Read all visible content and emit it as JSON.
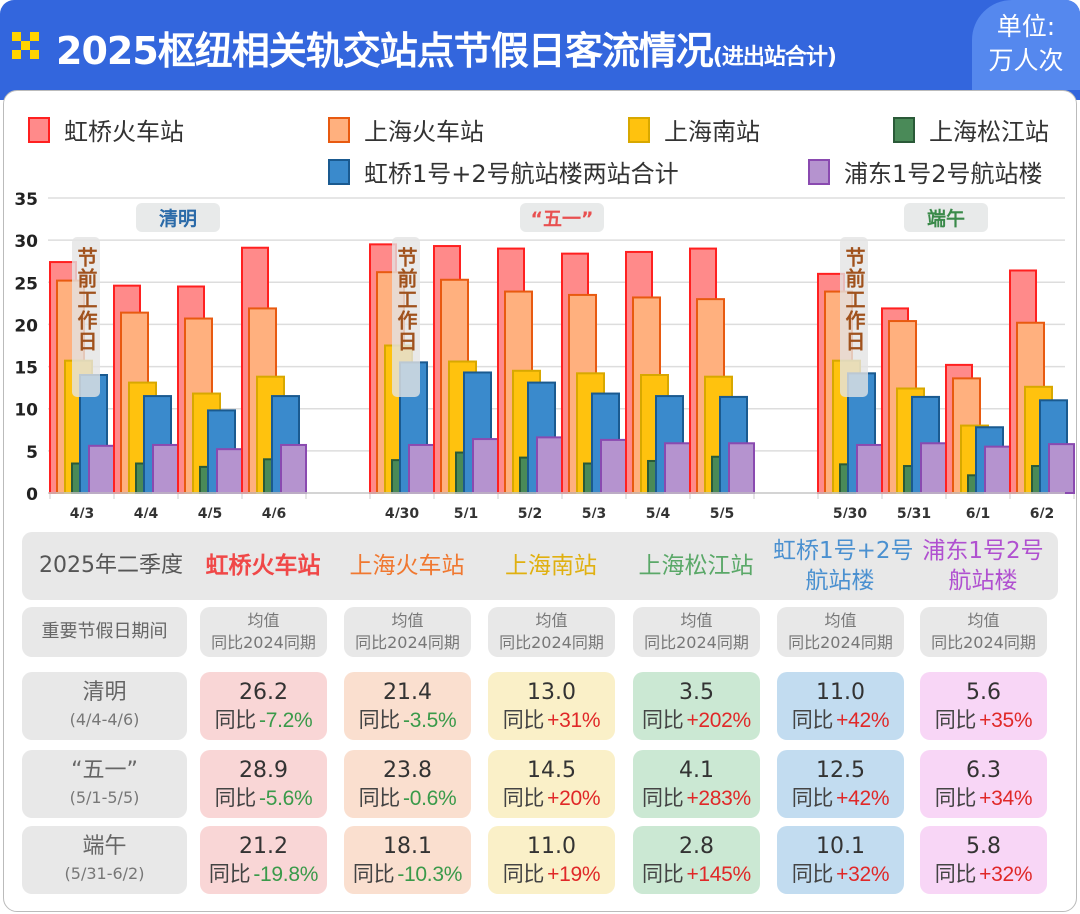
{
  "header": {
    "title": "2025枢纽相关轨交站点节假日客流情况",
    "title_note": "(进出站合计)",
    "unit_line1": "单位:",
    "unit_line2": "万人次"
  },
  "colors": {
    "header_bg": "#3366dd",
    "hongqiao_rail": "#ff8a8a",
    "shanghai_rail": "#ffb07e",
    "shanghai_south": "#ffc20e",
    "songjiang": "#4a8a58",
    "hongqiao_airport": "#3a8acc",
    "pudong_airport": "#b593cf"
  },
  "chart_data": {
    "type": "bar",
    "ylim": [
      0,
      35
    ],
    "yticks": [
      0,
      5,
      10,
      15,
      20,
      25,
      30,
      35
    ],
    "grid": true,
    "legend_position": "top",
    "annotation": "节前工作日",
    "annotation_categories": [
      "4/30",
      "5/30",
      "4/3"
    ],
    "groups": [
      {
        "label": "清明",
        "color": "#2a6aa8",
        "categories": [
          "4/3",
          "4/4",
          "4/5",
          "4/6"
        ]
      },
      {
        "label": "“五一”",
        "color": "#e85050",
        "categories": [
          "4/30",
          "5/1",
          "5/2",
          "5/3",
          "5/4",
          "5/5"
        ]
      },
      {
        "label": "端午",
        "color": "#3a8a4a",
        "categories": [
          "5/30",
          "5/31",
          "6/1",
          "6/2"
        ]
      }
    ],
    "categories": [
      "4/3",
      "4/4",
      "4/5",
      "4/6",
      "4/30",
      "5/1",
      "5/2",
      "5/3",
      "5/4",
      "5/5",
      "5/30",
      "5/31",
      "6/1",
      "6/2"
    ],
    "series": [
      {
        "name": "虹桥火车站",
        "fill": "#ff8a8a",
        "stroke": "#ff2020",
        "values": [
          27.4,
          24.6,
          24.5,
          29.1,
          29.5,
          29.3,
          29.0,
          28.4,
          28.6,
          29.0,
          26.0,
          21.9,
          15.2,
          26.4
        ]
      },
      {
        "name": "上海火车站",
        "fill": "#ffb07e",
        "stroke": "#e85a10",
        "values": [
          25.2,
          21.4,
          20.7,
          21.9,
          26.2,
          25.3,
          23.9,
          23.5,
          23.2,
          23.0,
          23.9,
          20.4,
          13.6,
          20.2
        ]
      },
      {
        "name": "上海南站",
        "fill": "#ffc20e",
        "stroke": "#d8a800",
        "values": [
          15.7,
          13.1,
          11.8,
          13.8,
          17.5,
          15.6,
          14.5,
          14.2,
          14.0,
          13.8,
          15.7,
          12.4,
          8.0,
          12.6
        ]
      },
      {
        "name": "上海松江站",
        "fill": "#4a8a58",
        "stroke": "#2a5a38",
        "values": [
          3.5,
          3.5,
          3.1,
          4.0,
          3.9,
          4.8,
          4.2,
          3.5,
          3.8,
          4.3,
          3.4,
          3.2,
          2.1,
          3.2
        ]
      },
      {
        "name": "虹桥1号+2号航站楼两站合计",
        "fill": "#3a8acc",
        "stroke": "#1a5a90",
        "values": [
          14.0,
          11.5,
          9.8,
          11.5,
          15.5,
          14.3,
          13.1,
          11.8,
          11.5,
          11.4,
          14.2,
          11.4,
          7.8,
          11.0
        ]
      },
      {
        "name": "浦东1号2号航站楼",
        "fill": "#b593cf",
        "stroke": "#8a4ab0",
        "values": [
          5.6,
          5.7,
          5.2,
          5.7,
          5.7,
          6.4,
          6.6,
          6.3,
          5.9,
          5.9,
          5.7,
          5.9,
          5.5,
          5.8
        ]
      }
    ]
  },
  "table": {
    "corner": "2025年二季度",
    "period_header": "重要节假日期间",
    "sub_header_line1": "均值",
    "sub_header_line2": "同比2024同期",
    "yoy_label": "同比",
    "columns": [
      {
        "line1": "虹桥火车站",
        "line2": "",
        "color": "#f04848",
        "bg": "#f9d6d6"
      },
      {
        "line1": "上海火车站",
        "line2": "",
        "color": "#f07830",
        "bg": "#fadfcf"
      },
      {
        "line1": "上海南站",
        "line2": "",
        "color": "#e0b010",
        "bg": "#faf0c8"
      },
      {
        "line1": "上海松江站",
        "line2": "",
        "color": "#5aa868",
        "bg": "#cbe8d3"
      },
      {
        "line1": "虹桥1号+2号",
        "line2": "航站楼",
        "color": "#4a90d0",
        "bg": "#c2dcf0"
      },
      {
        "line1": "浦东1号2号",
        "line2": "航站楼",
        "color": "#b050d0",
        "bg": "#f8d6f6"
      }
    ],
    "rows": [
      {
        "name": "清明",
        "range": "(4/4-4/6)",
        "cells": [
          {
            "v": "26.2",
            "y": "-7.2%"
          },
          {
            "v": "21.4",
            "y": "-3.5%"
          },
          {
            "v": "13.0",
            "y": "+31%"
          },
          {
            "v": "3.5",
            "y": "+202%"
          },
          {
            "v": "11.0",
            "y": "+42%"
          },
          {
            "v": "5.6",
            "y": "+35%"
          }
        ]
      },
      {
        "name": "“五一”",
        "range": "(5/1-5/5)",
        "cells": [
          {
            "v": "28.9",
            "y": "-5.6%"
          },
          {
            "v": "23.8",
            "y": "-0.6%"
          },
          {
            "v": "14.5",
            "y": "+20%"
          },
          {
            "v": "4.1",
            "y": "+283%"
          },
          {
            "v": "12.5",
            "y": "+42%"
          },
          {
            "v": "6.3",
            "y": "+34%"
          }
        ]
      },
      {
        "name": "端午",
        "range": "(5/31-6/2)",
        "cells": [
          {
            "v": "21.2",
            "y": "-19.8%"
          },
          {
            "v": "18.1",
            "y": "-10.3%"
          },
          {
            "v": "11.0",
            "y": "+19%"
          },
          {
            "v": "2.8",
            "y": "+145%"
          },
          {
            "v": "10.1",
            "y": "+32%"
          },
          {
            "v": "5.8",
            "y": "+32%"
          }
        ]
      }
    ]
  }
}
